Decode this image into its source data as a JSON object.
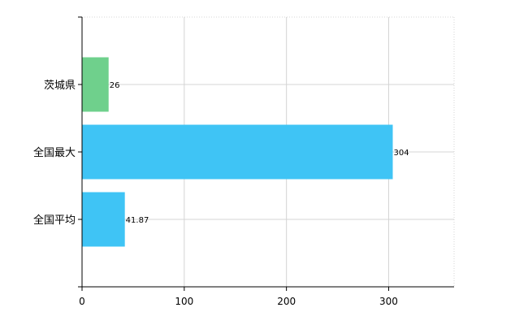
{
  "chart_data": {
    "type": "bar",
    "orientation": "horizontal",
    "categories": [
      "茨城県",
      "全国最大",
      "全国平均"
    ],
    "values": [
      26,
      304,
      41.87
    ],
    "data_labels": [
      "26",
      "304",
      "41.87"
    ],
    "colors": [
      "#6fd08c",
      "#3fc4f5",
      "#3fc4f5"
    ],
    "xlim": [
      0,
      364
    ],
    "xticks": [
      0,
      100,
      200,
      300
    ],
    "xtick_labels": [
      "0",
      "100",
      "200",
      "300"
    ],
    "grid": true,
    "legend": "none"
  }
}
